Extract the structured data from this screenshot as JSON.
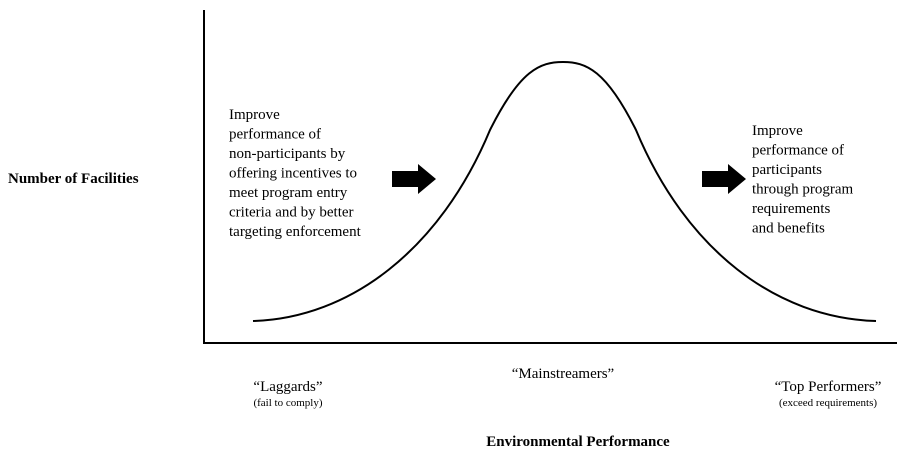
{
  "axis_labels": {
    "y": "Number of Facilities",
    "x": "Environmental Performance"
  },
  "annotations": {
    "left": [
      "Improve",
      "performance of",
      "non-participants by",
      "offering incentives to",
      "meet program entry",
      "criteria and by better",
      "targeting enforcement"
    ],
    "right": [
      "Improve",
      "performance of",
      "participants",
      "through program",
      "requirements",
      "and benefits"
    ]
  },
  "categories": [
    {
      "label": "“Laggards”",
      "sublabel": "(fail to comply)"
    },
    {
      "label": "“Mainstreamers”"
    },
    {
      "label": "“Top Performers”",
      "sublabel": "(exceed requirements)"
    }
  ]
}
